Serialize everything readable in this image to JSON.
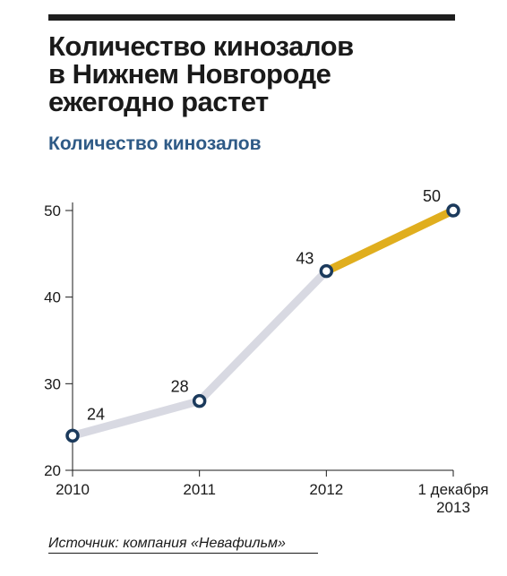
{
  "header": {
    "title": "Количество кинозалов\nв Нижнем Новгороде\nежегодно растет",
    "subtitle": "Количество кинозалов"
  },
  "footer": {
    "source": "Источник: компания «Невафильм»"
  },
  "chart_data": {
    "type": "line",
    "categories": [
      "2010",
      "2011",
      "2012",
      "1 декабря\n2013"
    ],
    "values": [
      24,
      28,
      43,
      50
    ],
    "data_labels": [
      "24",
      "28",
      "43",
      "50"
    ],
    "yticks": [
      20,
      30,
      40,
      50
    ],
    "ylim": [
      20,
      50
    ],
    "title": "Количество кинозалов",
    "xlabel": "",
    "ylabel": "",
    "grid": false,
    "colors": {
      "line_main": "#d8d9e2",
      "line_highlight": "#e0ae1e",
      "marker_stroke": "#1b3a5c",
      "marker_fill": "#ffffff",
      "axis": "#1a1a1a"
    }
  }
}
